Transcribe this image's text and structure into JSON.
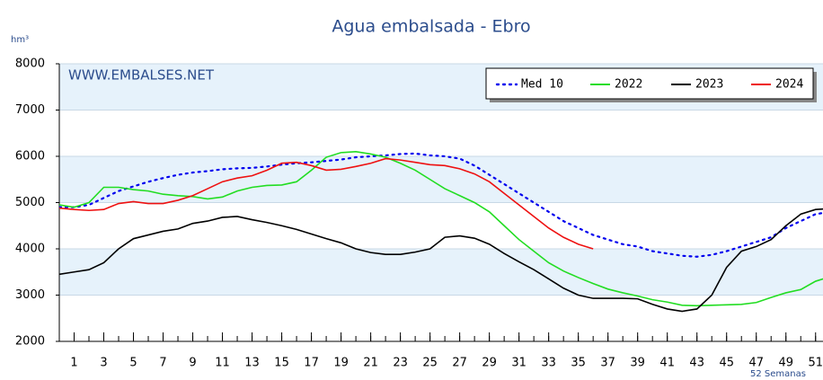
{
  "chart_data": {
    "type": "line",
    "title": "Agua embalsada - Ebro",
    "y_label": "hm³",
    "x_label": "52 Semanas",
    "annotation": "WWW.EMBALSES.NET",
    "x": [
      0,
      1,
      2,
      3,
      4,
      5,
      6,
      7,
      8,
      9,
      10,
      11,
      12,
      13,
      14,
      15,
      16,
      17,
      18,
      19,
      20,
      21,
      22,
      23,
      24,
      25,
      26,
      27,
      28,
      29,
      30,
      31,
      32,
      33,
      34,
      35,
      36,
      37,
      38,
      39,
      40,
      41,
      42,
      43,
      44,
      45,
      46,
      47,
      48,
      49,
      50,
      51,
      52
    ],
    "xlim": [
      0,
      51.5
    ],
    "xticks": [
      1,
      3,
      5,
      7,
      9,
      11,
      13,
      15,
      17,
      19,
      21,
      23,
      25,
      27,
      29,
      31,
      33,
      35,
      37,
      39,
      41,
      43,
      45,
      47,
      49,
      51
    ],
    "ylim": [
      2000,
      8000
    ],
    "yticks": [
      2000,
      3000,
      4000,
      5000,
      6000,
      7000,
      8000
    ],
    "grid": true,
    "legend": "top-right",
    "series": [
      {
        "name": "Med 10",
        "color": "#0000ee",
        "style": "dotted",
        "values": [
          4900,
          4900,
          4950,
          5100,
          5250,
          5350,
          5450,
          5530,
          5600,
          5650,
          5680,
          5720,
          5740,
          5750,
          5780,
          5820,
          5850,
          5870,
          5900,
          5930,
          5980,
          6000,
          6020,
          6050,
          6060,
          6020,
          6000,
          5950,
          5800,
          5600,
          5400,
          5200,
          5000,
          4800,
          4600,
          4450,
          4300,
          4200,
          4100,
          4050,
          3950,
          3900,
          3850,
          3830,
          3870,
          3950,
          4050,
          4150,
          4250,
          4450,
          4600,
          4750,
          4800
        ]
      },
      {
        "name": "2022",
        "color": "#22dd22",
        "style": "solid",
        "values": [
          4950,
          4900,
          5000,
          5330,
          5330,
          5280,
          5250,
          5180,
          5150,
          5130,
          5080,
          5120,
          5250,
          5330,
          5370,
          5380,
          5450,
          5700,
          5980,
          6080,
          6100,
          6050,
          5980,
          5850,
          5700,
          5500,
          5300,
          5150,
          5000,
          4800,
          4500,
          4200,
          3950,
          3700,
          3520,
          3380,
          3250,
          3130,
          3050,
          2980,
          2900,
          2850,
          2780,
          2770,
          2780,
          2790,
          2800,
          2840,
          2950,
          3050,
          3120,
          3300,
          3400
        ]
      },
      {
        "name": "2023",
        "color": "#000000",
        "style": "solid",
        "values": [
          3450,
          3500,
          3550,
          3700,
          4000,
          4220,
          4300,
          4380,
          4430,
          4550,
          4600,
          4680,
          4700,
          4630,
          4570,
          4500,
          4420,
          4320,
          4220,
          4130,
          4000,
          3920,
          3880,
          3880,
          3930,
          4000,
          4250,
          4280,
          4230,
          4100,
          3900,
          3720,
          3550,
          3350,
          3150,
          3000,
          2930,
          2930,
          2930,
          2920,
          2800,
          2700,
          2650,
          2700,
          3000,
          3600,
          3950,
          4050,
          4200,
          4500,
          4750,
          4850,
          4870
        ]
      },
      {
        "name": "2024",
        "color": "#ee1111",
        "style": "solid",
        "values": [
          4880,
          4850,
          4830,
          4850,
          4980,
          5020,
          4980,
          4980,
          5050,
          5150,
          5300,
          5450,
          5530,
          5580,
          5700,
          5850,
          5870,
          5800,
          5700,
          5720,
          5780,
          5850,
          5950,
          5920,
          5870,
          5820,
          5800,
          5730,
          5620,
          5450,
          5200,
          4950,
          4700,
          4450,
          4250,
          4100,
          4000,
          null,
          null,
          null,
          null,
          null,
          null,
          null,
          null,
          null,
          null,
          null,
          null,
          null,
          null,
          null,
          null
        ]
      }
    ]
  }
}
